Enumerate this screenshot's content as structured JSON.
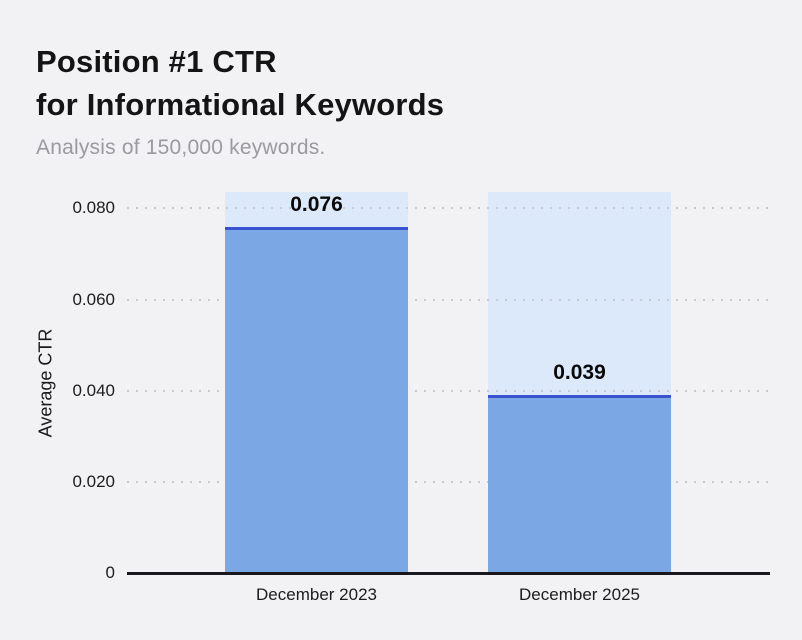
{
  "header": {
    "title_line1": "Position #1 CTR",
    "title_line2": "for Informational Keywords",
    "subtitle": "Analysis of 150,000 keywords."
  },
  "chart_data": {
    "type": "bar",
    "title": "Position #1 CTR for Informational Keywords",
    "subtitle": "Analysis of 150,000 keywords.",
    "categories": [
      "December 2023",
      "December 2025"
    ],
    "values": [
      0.076,
      0.039
    ],
    "value_labels": [
      "0.076",
      "0.039"
    ],
    "xlabel": "",
    "ylabel": "Average CTR",
    "ylim": [
      0,
      0.0836
    ],
    "yticks": [
      {
        "value": 0.08,
        "label": "0.080"
      },
      {
        "value": 0.06,
        "label": "0.060"
      },
      {
        "value": 0.04,
        "label": "0.040"
      },
      {
        "value": 0.02,
        "label": "0.020"
      },
      {
        "value": 0,
        "label": "0"
      }
    ],
    "grid": "horizontal-dotted",
    "legend": "none",
    "colors": {
      "background": "#f2f2f4",
      "bar_fill": "#7ba8e4",
      "bar_top_line": "#3952d1",
      "bar_track": "#dbe9fb",
      "gridline": "#c9c9ce",
      "axis_line": "#18181d",
      "title_text": "#141414",
      "subtitle_text": "#9a9aa0",
      "value_label_text": "#0a0a0a"
    }
  }
}
